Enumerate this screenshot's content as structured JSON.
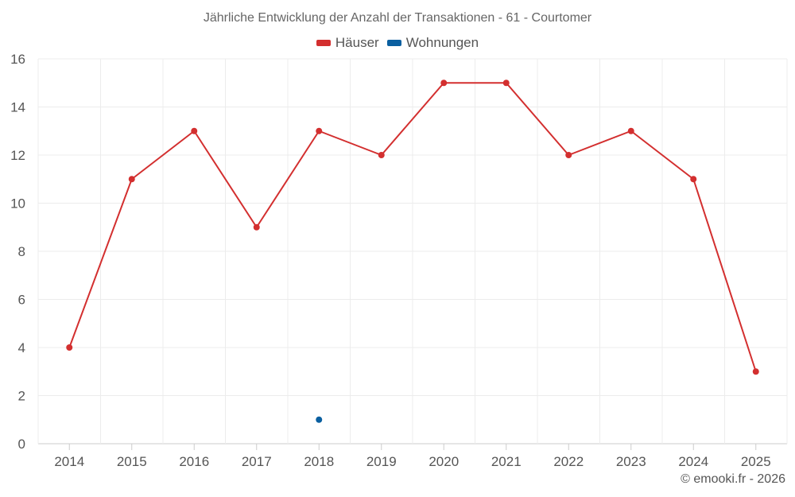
{
  "chart_data": {
    "type": "line",
    "title": "Jährliche Entwicklung der Anzahl der Transaktionen - 61 - Courtomer",
    "categories": [
      "2014",
      "2015",
      "2016",
      "2017",
      "2018",
      "2019",
      "2020",
      "2021",
      "2022",
      "2023",
      "2024",
      "2025"
    ],
    "series": [
      {
        "name": "Häuser",
        "color": "#d32f2f",
        "values": [
          4,
          11,
          13,
          9,
          13,
          12,
          15,
          15,
          12,
          13,
          11,
          3
        ]
      },
      {
        "name": "Wohnungen",
        "color": "#0a5fa0",
        "values": [
          null,
          null,
          null,
          null,
          1,
          null,
          null,
          null,
          null,
          null,
          null,
          null
        ]
      }
    ],
    "ylim": [
      0,
      16
    ],
    "yticks": [
      0,
      2,
      4,
      6,
      8,
      10,
      12,
      14,
      16
    ],
    "grid": true,
    "legend_position": "top-center"
  },
  "credit": "© emooki.fr - 2026"
}
